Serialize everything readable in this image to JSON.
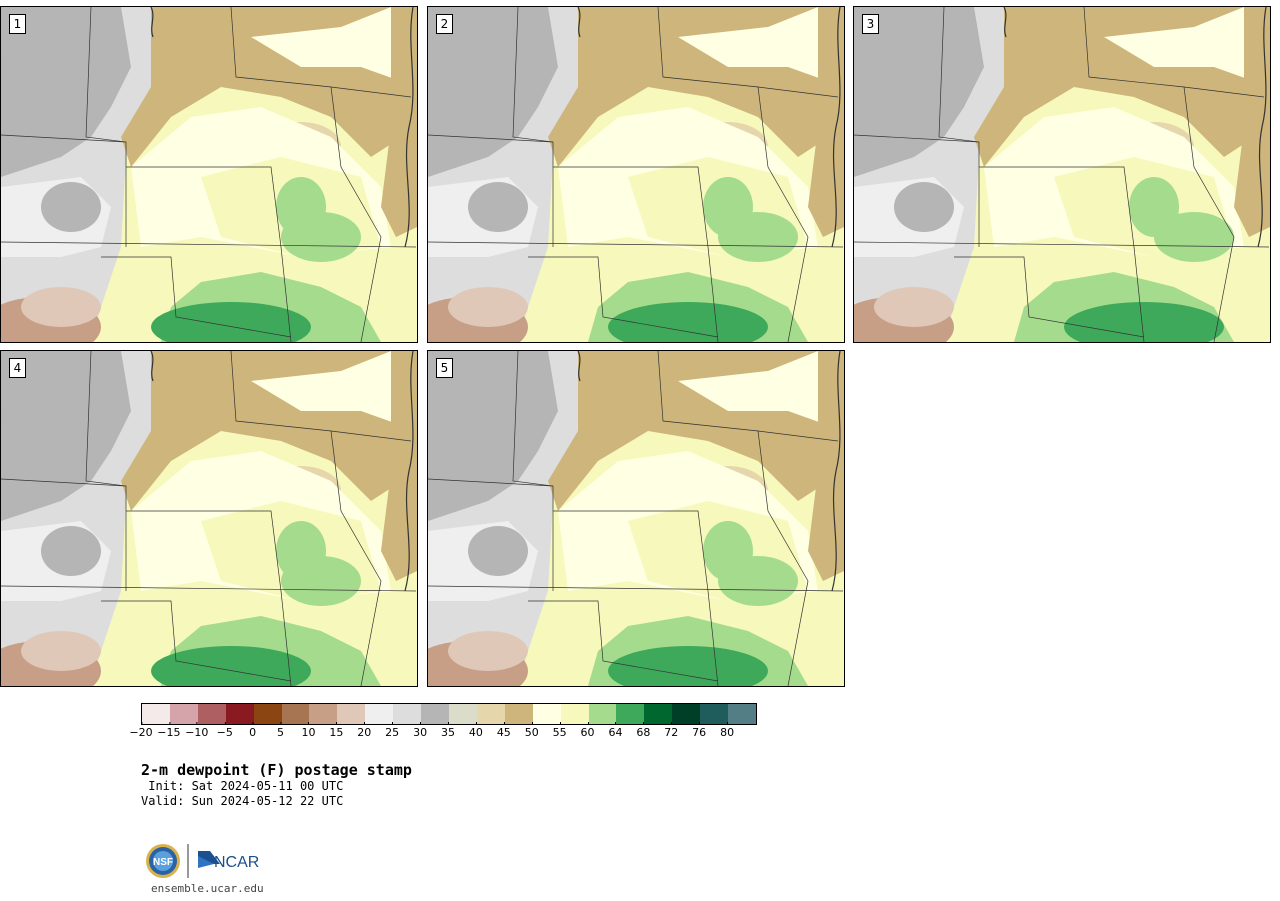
{
  "panels": [
    {
      "label": "1"
    },
    {
      "label": "2"
    },
    {
      "label": "3"
    },
    {
      "label": "4"
    },
    {
      "label": "5"
    }
  ],
  "colorbar": {
    "colors": [
      "#f4eaea",
      "#d4a4aa",
      "#ad5f61",
      "#8a1a22",
      "#8b4513",
      "#a87552",
      "#c79e86",
      "#e0c8b8",
      "#efefef",
      "#dddddd",
      "#b5b5b5",
      "#dcdcca",
      "#e6d6ac",
      "#cdb57b",
      "#ffffe3",
      "#f6f9bb",
      "#a4db8c",
      "#3ea95a",
      "#00672f",
      "#003f27",
      "#1f5c5c",
      "#537e86"
    ],
    "tick_labels": [
      "−20",
      "−15",
      "−10",
      "−5",
      "0",
      "5",
      "10",
      "15",
      "20",
      "25",
      "30",
      "35",
      "40",
      "45",
      "50",
      "55",
      "60",
      "64",
      "68",
      "72",
      "76",
      "80"
    ]
  },
  "title": "2-m dewpoint (F) postage stamp",
  "init_line": " Init: Sat 2024-05-11 00 UTC",
  "valid_line": "Valid: Sun 2024-05-12 22 UTC",
  "logo_text": "NCAR",
  "logo_nsf": "NSF",
  "footer": "ensemble.ucar.edu"
}
